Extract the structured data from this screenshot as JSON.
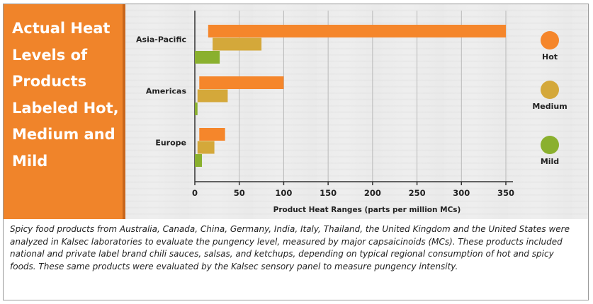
{
  "title": "Actual Heat Levels of Products Labeled Hot, Medium and Mild",
  "caption": "Spicy food products from Australia, Canada, China, Germany, India, Italy, Thailand, the United Kingdom and the United States were analyzed in Kalsec laboratories to evaluate the pungency level, measured by major capsaicinoids (MCs). These products included national and private label brand chili sauces, salsas, and ketchups, depending on typical regional consumption of hot and spicy foods. These same products were evaluated by the Kalsec sensory panel to measure pungency intensity.",
  "colors": {
    "hot": "#f5862b",
    "medium": "#d4a83a",
    "mild": "#8ab02e",
    "side_panel": "#f0842a"
  },
  "chart_data": {
    "type": "bar",
    "orientation": "horizontal",
    "categories": [
      "Asia-Pacific",
      "Americas",
      "Europe"
    ],
    "series": [
      {
        "name": "Hot",
        "ranges": [
          [
            15,
            350
          ],
          [
            5,
            100
          ],
          [
            5,
            34
          ]
        ]
      },
      {
        "name": "Medium",
        "ranges": [
          [
            20,
            75
          ],
          [
            3,
            37
          ],
          [
            3,
            22
          ]
        ]
      },
      {
        "name": "Mild",
        "ranges": [
          [
            0,
            28
          ],
          [
            0,
            3
          ],
          [
            0,
            8
          ]
        ]
      }
    ],
    "xlabel": "Product Heat Ranges (parts per million MCs)",
    "xticks": [
      "0",
      "50",
      "100",
      "150",
      "200",
      "250",
      "300",
      "350"
    ],
    "xlim": [
      0,
      350
    ],
    "legend_placement": "right",
    "grid": "vertical"
  }
}
